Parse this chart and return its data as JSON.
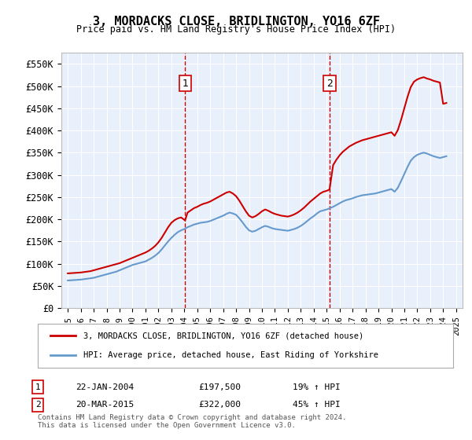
{
  "title": "3, MORDACKS CLOSE, BRIDLINGTON, YO16 6ZF",
  "subtitle": "Price paid vs. HM Land Registry's House Price Index (HPI)",
  "legend_line1": "3, MORDACKS CLOSE, BRIDLINGTON, YO16 6ZF (detached house)",
  "legend_line2": "HPI: Average price, detached house, East Riding of Yorkshire",
  "footer": "Contains HM Land Registry data © Crown copyright and database right 2024.\nThis data is licensed under the Open Government Licence v3.0.",
  "transactions": [
    {
      "num": 1,
      "date": "22-JAN-2004",
      "price": 197500,
      "hpi_change": "19% ↑ HPI",
      "year": 2004.06
    },
    {
      "num": 2,
      "date": "20-MAR-2015",
      "price": 322000,
      "hpi_change": "45% ↑ HPI",
      "year": 2015.22
    }
  ],
  "ylim": [
    0,
    575000
  ],
  "xlim": [
    1994.5,
    2025.5
  ],
  "yticks": [
    0,
    50000,
    100000,
    150000,
    200000,
    250000,
    300000,
    350000,
    400000,
    450000,
    500000,
    550000
  ],
  "ytick_labels": [
    "£0",
    "£50K",
    "£100K",
    "£150K",
    "£200K",
    "£250K",
    "£300K",
    "£350K",
    "£400K",
    "£450K",
    "£500K",
    "£550K"
  ],
  "bg_color": "#dce9f8",
  "plot_bg": "#e8f0fb",
  "red_color": "#cc0000",
  "blue_color": "#6699cc",
  "hpi_data": {
    "years": [
      1995,
      1995.25,
      1995.5,
      1995.75,
      1996,
      1996.25,
      1996.5,
      1996.75,
      1997,
      1997.25,
      1997.5,
      1997.75,
      1998,
      1998.25,
      1998.5,
      1998.75,
      1999,
      1999.25,
      1999.5,
      1999.75,
      2000,
      2000.25,
      2000.5,
      2000.75,
      2001,
      2001.25,
      2001.5,
      2001.75,
      2002,
      2002.25,
      2002.5,
      2002.75,
      2003,
      2003.25,
      2003.5,
      2003.75,
      2004,
      2004.25,
      2004.5,
      2004.75,
      2005,
      2005.25,
      2005.5,
      2005.75,
      2006,
      2006.25,
      2006.5,
      2006.75,
      2007,
      2007.25,
      2007.5,
      2007.75,
      2008,
      2008.25,
      2008.5,
      2008.75,
      2009,
      2009.25,
      2009.5,
      2009.75,
      2010,
      2010.25,
      2010.5,
      2010.75,
      2011,
      2011.25,
      2011.5,
      2011.75,
      2012,
      2012.25,
      2012.5,
      2012.75,
      2013,
      2013.25,
      2013.5,
      2013.75,
      2014,
      2014.25,
      2014.5,
      2014.75,
      2015,
      2015.25,
      2015.5,
      2015.75,
      2016,
      2016.25,
      2016.5,
      2016.75,
      2017,
      2017.25,
      2017.5,
      2017.75,
      2018,
      2018.25,
      2018.5,
      2018.75,
      2019,
      2019.25,
      2019.5,
      2019.75,
      2020,
      2020.25,
      2020.5,
      2020.75,
      2021,
      2021.25,
      2021.5,
      2021.75,
      2022,
      2022.25,
      2022.5,
      2022.75,
      2023,
      2023.25,
      2023.5,
      2023.75,
      2024,
      2024.25
    ],
    "values": [
      62000,
      62500,
      63000,
      63500,
      64000,
      65000,
      66000,
      67000,
      68000,
      70000,
      72000,
      74000,
      76000,
      78000,
      80000,
      82000,
      85000,
      88000,
      91000,
      94000,
      97000,
      99000,
      101000,
      103000,
      105000,
      109000,
      113000,
      118000,
      124000,
      132000,
      141000,
      150000,
      158000,
      165000,
      171000,
      175000,
      178000,
      182000,
      185000,
      188000,
      190000,
      192000,
      193000,
      194000,
      196000,
      199000,
      202000,
      205000,
      208000,
      212000,
      215000,
      213000,
      210000,
      202000,
      193000,
      183000,
      175000,
      172000,
      174000,
      178000,
      182000,
      185000,
      183000,
      180000,
      178000,
      177000,
      176000,
      175000,
      174000,
      176000,
      178000,
      181000,
      185000,
      190000,
      196000,
      202000,
      207000,
      213000,
      218000,
      220000,
      222000,
      225000,
      228000,
      232000,
      236000,
      240000,
      243000,
      245000,
      247000,
      250000,
      252000,
      254000,
      255000,
      256000,
      257000,
      258000,
      260000,
      262000,
      264000,
      266000,
      268000,
      262000,
      271000,
      286000,
      302000,
      318000,
      332000,
      340000,
      345000,
      348000,
      350000,
      348000,
      345000,
      342000,
      340000,
      338000,
      340000,
      342000
    ]
  },
  "property_data": {
    "years": [
      1995,
      1995.25,
      1995.5,
      1995.75,
      1996,
      1996.25,
      1996.5,
      1996.75,
      1997,
      1997.25,
      1997.5,
      1997.75,
      1998,
      1998.25,
      1998.5,
      1998.75,
      1999,
      1999.25,
      1999.5,
      1999.75,
      2000,
      2000.25,
      2000.5,
      2000.75,
      2001,
      2001.25,
      2001.5,
      2001.75,
      2002,
      2002.25,
      2002.5,
      2002.75,
      2003,
      2003.25,
      2003.5,
      2003.75,
      2004.06,
      2004.25,
      2004.5,
      2004.75,
      2005,
      2005.25,
      2005.5,
      2005.75,
      2006,
      2006.25,
      2006.5,
      2006.75,
      2007,
      2007.25,
      2007.5,
      2007.75,
      2008,
      2008.25,
      2008.5,
      2008.75,
      2009,
      2009.25,
      2009.5,
      2009.75,
      2010,
      2010.25,
      2010.5,
      2010.75,
      2011,
      2011.25,
      2011.5,
      2011.75,
      2012,
      2012.25,
      2012.5,
      2012.75,
      2013,
      2013.25,
      2013.5,
      2013.75,
      2014,
      2014.25,
      2014.5,
      2014.75,
      2015,
      2015.22,
      2015.5,
      2015.75,
      2016,
      2016.25,
      2016.5,
      2016.75,
      2017,
      2017.25,
      2017.5,
      2017.75,
      2018,
      2018.25,
      2018.5,
      2018.75,
      2019,
      2019.25,
      2019.5,
      2019.75,
      2020,
      2020.25,
      2020.5,
      2020.75,
      2021,
      2021.25,
      2021.5,
      2021.75,
      2022,
      2022.25,
      2022.5,
      2022.75,
      2023,
      2023.25,
      2023.5,
      2023.75,
      2024,
      2024.25
    ],
    "values": [
      78000,
      78500,
      79000,
      79500,
      80000,
      81000,
      82000,
      83000,
      85000,
      87000,
      89000,
      91000,
      93000,
      95000,
      97000,
      99000,
      101000,
      104000,
      107000,
      110000,
      113000,
      116000,
      119000,
      122000,
      125000,
      129000,
      134000,
      140000,
      148000,
      158000,
      170000,
      182000,
      192000,
      198000,
      202000,
      204000,
      197500,
      215000,
      220000,
      225000,
      228000,
      232000,
      235000,
      237000,
      240000,
      244000,
      248000,
      252000,
      256000,
      260000,
      262000,
      258000,
      252000,
      242000,
      230000,
      218000,
      208000,
      204000,
      207000,
      212000,
      218000,
      222000,
      219000,
      215000,
      212000,
      210000,
      208000,
      207000,
      206000,
      208000,
      211000,
      215000,
      220000,
      226000,
      233000,
      240000,
      246000,
      252000,
      258000,
      262000,
      264000,
      267000,
      322000,
      334000,
      344000,
      352000,
      358000,
      364000,
      368000,
      372000,
      375000,
      378000,
      380000,
      382000,
      384000,
      386000,
      388000,
      390000,
      392000,
      394000,
      396000,
      388000,
      401000,
      424000,
      450000,
      476000,
      498000,
      510000,
      515000,
      518000,
      520000,
      517000,
      515000,
      512000,
      510000,
      508000,
      460000,
      462000
    ]
  }
}
